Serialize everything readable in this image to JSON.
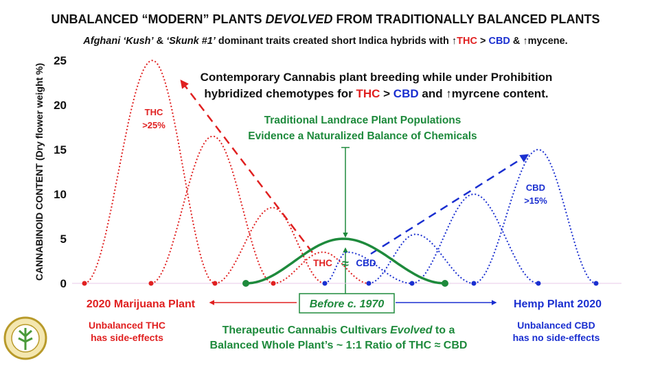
{
  "chart_data": {
    "type": "bell",
    "title": [
      {
        "text": "UNBALANCED “MODERN” PLANTS "
      },
      {
        "text": "DEVOLVED",
        "italic": true
      },
      {
        "text": " FROM TRADITIONALLY BALANCED PLANTS"
      }
    ],
    "subtitle": [
      {
        "text": "Afghani ‘Kush’",
        "italic": true
      },
      {
        "text": " & "
      },
      {
        "text": "‘Skunk #1’",
        "italic": true
      },
      {
        "text": " dominant traits created short Indica hybrids with ↑"
      },
      {
        "text": "THC",
        "color": "#e02020"
      },
      {
        "text": " > "
      },
      {
        "text": "CBD",
        "color": "#1a2fd0"
      },
      {
        "text": " & ↑mycene."
      }
    ],
    "ylabel": "CANNABINOID CONTENT (Dry flower weight %)",
    "ylim": [
      0,
      25
    ],
    "yticks": [
      0,
      5,
      10,
      15,
      20,
      25
    ],
    "series": [
      {
        "name": "THC",
        "color": "#e02020",
        "values": [
          25,
          16.5,
          8.5,
          3.5
        ]
      },
      {
        "name": "CBD",
        "color": "#1a2fd0",
        "values": [
          3.5,
          5.5,
          10,
          15
        ]
      },
      {
        "color": "#1e8a3c",
        "values": [
          5
        ]
      }
    ],
    "annotations": {
      "breeding": [
        [
          {
            "text": "Contemporary Cannabis plant breeding while under Prohibition"
          }
        ],
        [
          {
            "text": "hybridized chemotypes for "
          },
          {
            "text": "THC",
            "color": "#e02020"
          },
          {
            "text": " > "
          },
          {
            "text": "CBD",
            "color": "#1a2fd0"
          },
          {
            "text": " and ↑myrcene content."
          }
        ]
      ],
      "landrace": [
        "Traditional Landrace Plant Populations",
        "Evidence a Naturalized Balance of Chemicals"
      ],
      "thc_peak": [
        "THC",
        ">25%"
      ],
      "cbd_peak": [
        "CBD",
        ">15%"
      ],
      "approx": "≈",
      "marijuana": "2020 Marijuana Plant",
      "before": "Before c. 1970",
      "hemp": "Hemp Plant 2020",
      "thc_note": [
        "Unbalanced THC",
        "has side-effects"
      ],
      "therapeutic": [
        [
          {
            "text": "Therapeutic Cannabis Cultivars "
          },
          {
            "text": "Evolved",
            "italic": true
          },
          {
            "text": " to a"
          }
        ],
        [
          {
            "text": "Balanced Whole Plant’s ~ 1:1 Ratio of THC ≈ CBD"
          }
        ]
      ],
      "cbd_note": [
        "Unbalanced CBD",
        "has no side-effects"
      ]
    }
  }
}
